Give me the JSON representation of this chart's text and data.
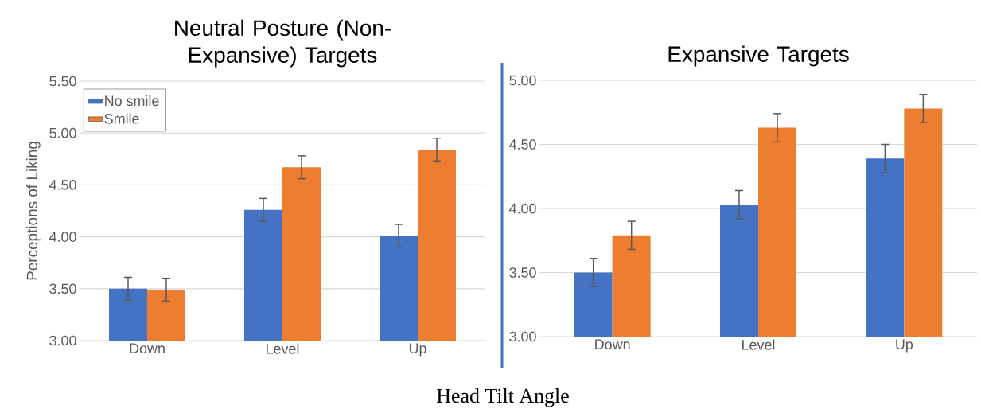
{
  "chart_data": [
    {
      "type": "bar",
      "title": "Neutral Posture (Non-Expansive) Targets",
      "ylabel": "Perceptions of Liking",
      "annotations": [
        "Head Tilt Angle"
      ],
      "categories": [
        "Down",
        "Level",
        "Up"
      ],
      "series": [
        {
          "name": "No smile",
          "color": "#4472c4",
          "values": [
            3.5,
            4.26,
            4.01
          ],
          "errors": [
            0.11,
            0.11,
            0.11
          ]
        },
        {
          "name": "Smile",
          "color": "#ed7d31",
          "values": [
            3.49,
            4.67,
            4.84
          ],
          "errors": [
            0.11,
            0.11,
            0.11
          ]
        }
      ],
      "ylim": [
        3,
        5.5
      ],
      "yticks": [
        {
          "value": 3,
          "label": "3.00"
        },
        {
          "value": 3.5,
          "label": "3.50"
        },
        {
          "value": 4,
          "label": "4.00"
        },
        {
          "value": 4.5,
          "label": "4.50"
        },
        {
          "value": 5,
          "label": "5.00"
        },
        {
          "value": 5.5,
          "label": "5.50"
        }
      ],
      "grid": "y",
      "legend": "top left"
    },
    {
      "type": "bar",
      "title": "Expansive Targets",
      "categories": [
        "Down",
        "Level",
        "Up"
      ],
      "series": [
        {
          "color": "#4472c4",
          "values": [
            3.5,
            4.03,
            4.39
          ],
          "errors": [
            0.11,
            0.11,
            0.11
          ]
        },
        {
          "color": "#ed7d31",
          "values": [
            3.79,
            4.63,
            4.78
          ],
          "errors": [
            0.11,
            0.11,
            0.11
          ]
        }
      ],
      "ylim": [
        3,
        5
      ],
      "yticks": [
        {
          "value": 3,
          "label": "3.00"
        },
        {
          "value": 3.5,
          "label": "3.50"
        },
        {
          "value": 4,
          "label": "4.00"
        },
        {
          "value": 4.5,
          "label": "4.50"
        },
        {
          "value": 5,
          "label": "5.00"
        }
      ],
      "grid": "y"
    }
  ]
}
